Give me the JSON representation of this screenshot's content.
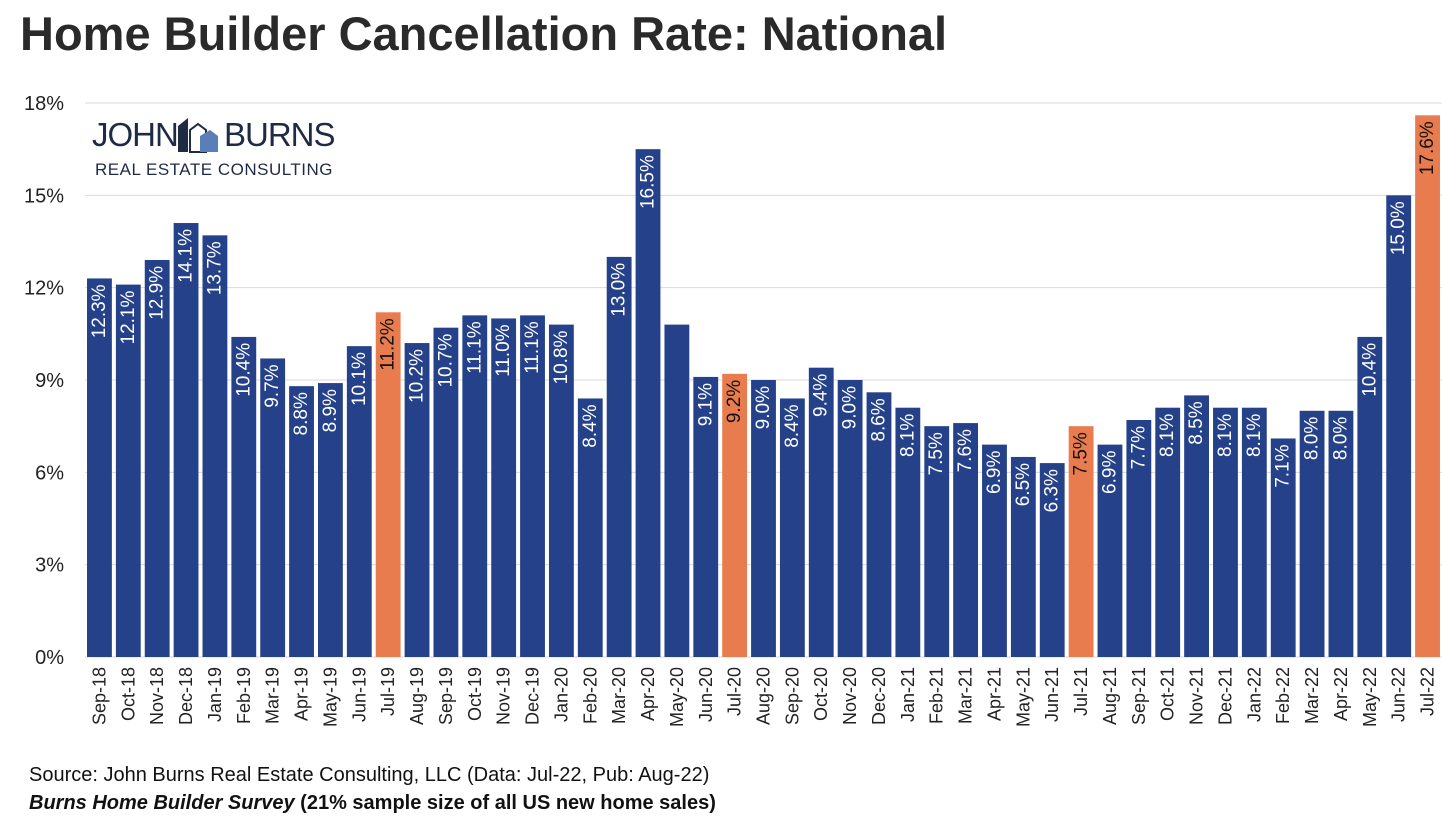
{
  "header": {
    "title": "Home Builder Cancellation Rate: National"
  },
  "logo": {
    "line1a": "JOHN",
    "line1b": "BURNS",
    "line2": "REAL ESTATE CONSULTING"
  },
  "footer": {
    "source": "Source: John Burns Real Estate Consulting, LLC (Data: Jul-22, Pub: Aug-22)",
    "survey_name": "Burns Home Builder Survey",
    "survey_note": " (21% sample size of all US new home sales)"
  },
  "colors": {
    "bar": "#24418a",
    "highlight": "#e97c4f",
    "grid": "#d9d9d9",
    "label_on_bar": "#ffffff",
    "label_on_highlight": "#111111"
  },
  "chart_data": {
    "type": "bar",
    "title": "Home Builder Cancellation Rate: National",
    "xlabel": "",
    "ylabel": "",
    "ylim": [
      0,
      18
    ],
    "yticks": [
      0,
      3,
      6,
      9,
      12,
      15,
      18
    ],
    "ytick_labels": [
      "0%",
      "3%",
      "6%",
      "9%",
      "12%",
      "15%",
      "18%"
    ],
    "grid": true,
    "categories": [
      "Sep-18",
      "Oct-18",
      "Nov-18",
      "Dec-18",
      "Jan-19",
      "Feb-19",
      "Mar-19",
      "Apr-19",
      "May-19",
      "Jun-19",
      "Jul-19",
      "Aug-19",
      "Sep-19",
      "Oct-19",
      "Nov-19",
      "Dec-19",
      "Jan-20",
      "Feb-20",
      "Mar-20",
      "Apr-20",
      "May-20",
      "Jun-20",
      "Jul-20",
      "Aug-20",
      "Sep-20",
      "Oct-20",
      "Nov-20",
      "Dec-20",
      "Jan-21",
      "Feb-21",
      "Mar-21",
      "Apr-21",
      "May-21",
      "Jun-21",
      "Jul-21",
      "Aug-21",
      "Sep-21",
      "Oct-21",
      "Nov-21",
      "Dec-21",
      "Jan-22",
      "Feb-22",
      "Mar-22",
      "Apr-22",
      "May-22",
      "Jun-22",
      "Jul-22"
    ],
    "values": [
      12.3,
      12.1,
      12.9,
      14.1,
      13.7,
      10.4,
      9.7,
      8.8,
      8.9,
      10.1,
      11.2,
      10.2,
      10.7,
      11.1,
      11.0,
      11.1,
      10.8,
      8.4,
      13.0,
      16.5,
      10.8,
      9.1,
      9.2,
      9.0,
      8.4,
      9.4,
      9.0,
      8.6,
      8.1,
      7.5,
      7.6,
      6.9,
      6.5,
      6.3,
      7.5,
      6.9,
      7.7,
      8.1,
      8.5,
      8.1,
      8.1,
      7.1,
      8.0,
      8.0,
      10.4,
      15.0,
      17.6
    ],
    "data_labels": [
      "12.3%",
      "12.1%",
      "12.9%",
      "14.1%",
      "13.7%",
      "10.4%",
      "9.7%",
      "8.8%",
      "8.9%",
      "10.1%",
      "11.2%",
      "10.2%",
      "10.7%",
      "11.1%",
      "11.0%",
      "11.1%",
      "10.8%",
      "8.4%",
      "13.0%",
      "16.5%",
      "",
      "9.1%",
      "9.2%",
      "9.0%",
      "8.4%",
      "9.4%",
      "9.0%",
      "8.6%",
      "8.1%",
      "7.5%",
      "7.6%",
      "6.9%",
      "6.5%",
      "6.3%",
      "7.5%",
      "6.9%",
      "7.7%",
      "8.1%",
      "8.5%",
      "8.1%",
      "8.1%",
      "7.1%",
      "8.0%",
      "8.0%",
      "10.4%",
      "15.0%",
      "17.6%"
    ],
    "highlighted_categories": [
      "Jul-19",
      "Jul-20",
      "Jul-21",
      "Jul-22"
    ]
  }
}
